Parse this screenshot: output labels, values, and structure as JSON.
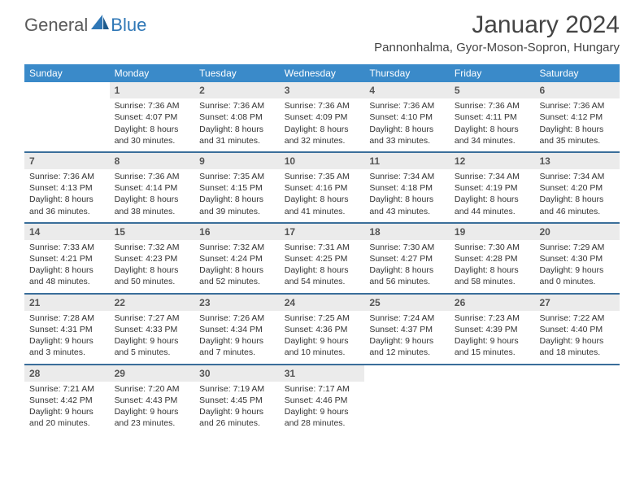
{
  "brand": {
    "part1": "General",
    "part2": "Blue"
  },
  "title": "January 2024",
  "location": "Pannonhalma, Gyor-Moson-Sopron, Hungary",
  "colors": {
    "header_bg": "#3a8ac9",
    "row_border": "#3a6e9a",
    "daynum_bg": "#ebebeb",
    "brand_gray": "#5a5a5a",
    "brand_blue": "#2f77b6"
  },
  "weekdays": [
    "Sunday",
    "Monday",
    "Tuesday",
    "Wednesday",
    "Thursday",
    "Friday",
    "Saturday"
  ],
  "weeks": [
    [
      {
        "n": "",
        "lines": []
      },
      {
        "n": "1",
        "lines": [
          "Sunrise: 7:36 AM",
          "Sunset: 4:07 PM",
          "Daylight: 8 hours",
          "and 30 minutes."
        ]
      },
      {
        "n": "2",
        "lines": [
          "Sunrise: 7:36 AM",
          "Sunset: 4:08 PM",
          "Daylight: 8 hours",
          "and 31 minutes."
        ]
      },
      {
        "n": "3",
        "lines": [
          "Sunrise: 7:36 AM",
          "Sunset: 4:09 PM",
          "Daylight: 8 hours",
          "and 32 minutes."
        ]
      },
      {
        "n": "4",
        "lines": [
          "Sunrise: 7:36 AM",
          "Sunset: 4:10 PM",
          "Daylight: 8 hours",
          "and 33 minutes."
        ]
      },
      {
        "n": "5",
        "lines": [
          "Sunrise: 7:36 AM",
          "Sunset: 4:11 PM",
          "Daylight: 8 hours",
          "and 34 minutes."
        ]
      },
      {
        "n": "6",
        "lines": [
          "Sunrise: 7:36 AM",
          "Sunset: 4:12 PM",
          "Daylight: 8 hours",
          "and 35 minutes."
        ]
      }
    ],
    [
      {
        "n": "7",
        "lines": [
          "Sunrise: 7:36 AM",
          "Sunset: 4:13 PM",
          "Daylight: 8 hours",
          "and 36 minutes."
        ]
      },
      {
        "n": "8",
        "lines": [
          "Sunrise: 7:36 AM",
          "Sunset: 4:14 PM",
          "Daylight: 8 hours",
          "and 38 minutes."
        ]
      },
      {
        "n": "9",
        "lines": [
          "Sunrise: 7:35 AM",
          "Sunset: 4:15 PM",
          "Daylight: 8 hours",
          "and 39 minutes."
        ]
      },
      {
        "n": "10",
        "lines": [
          "Sunrise: 7:35 AM",
          "Sunset: 4:16 PM",
          "Daylight: 8 hours",
          "and 41 minutes."
        ]
      },
      {
        "n": "11",
        "lines": [
          "Sunrise: 7:34 AM",
          "Sunset: 4:18 PM",
          "Daylight: 8 hours",
          "and 43 minutes."
        ]
      },
      {
        "n": "12",
        "lines": [
          "Sunrise: 7:34 AM",
          "Sunset: 4:19 PM",
          "Daylight: 8 hours",
          "and 44 minutes."
        ]
      },
      {
        "n": "13",
        "lines": [
          "Sunrise: 7:34 AM",
          "Sunset: 4:20 PM",
          "Daylight: 8 hours",
          "and 46 minutes."
        ]
      }
    ],
    [
      {
        "n": "14",
        "lines": [
          "Sunrise: 7:33 AM",
          "Sunset: 4:21 PM",
          "Daylight: 8 hours",
          "and 48 minutes."
        ]
      },
      {
        "n": "15",
        "lines": [
          "Sunrise: 7:32 AM",
          "Sunset: 4:23 PM",
          "Daylight: 8 hours",
          "and 50 minutes."
        ]
      },
      {
        "n": "16",
        "lines": [
          "Sunrise: 7:32 AM",
          "Sunset: 4:24 PM",
          "Daylight: 8 hours",
          "and 52 minutes."
        ]
      },
      {
        "n": "17",
        "lines": [
          "Sunrise: 7:31 AM",
          "Sunset: 4:25 PM",
          "Daylight: 8 hours",
          "and 54 minutes."
        ]
      },
      {
        "n": "18",
        "lines": [
          "Sunrise: 7:30 AM",
          "Sunset: 4:27 PM",
          "Daylight: 8 hours",
          "and 56 minutes."
        ]
      },
      {
        "n": "19",
        "lines": [
          "Sunrise: 7:30 AM",
          "Sunset: 4:28 PM",
          "Daylight: 8 hours",
          "and 58 minutes."
        ]
      },
      {
        "n": "20",
        "lines": [
          "Sunrise: 7:29 AM",
          "Sunset: 4:30 PM",
          "Daylight: 9 hours",
          "and 0 minutes."
        ]
      }
    ],
    [
      {
        "n": "21",
        "lines": [
          "Sunrise: 7:28 AM",
          "Sunset: 4:31 PM",
          "Daylight: 9 hours",
          "and 3 minutes."
        ]
      },
      {
        "n": "22",
        "lines": [
          "Sunrise: 7:27 AM",
          "Sunset: 4:33 PM",
          "Daylight: 9 hours",
          "and 5 minutes."
        ]
      },
      {
        "n": "23",
        "lines": [
          "Sunrise: 7:26 AM",
          "Sunset: 4:34 PM",
          "Daylight: 9 hours",
          "and 7 minutes."
        ]
      },
      {
        "n": "24",
        "lines": [
          "Sunrise: 7:25 AM",
          "Sunset: 4:36 PM",
          "Daylight: 9 hours",
          "and 10 minutes."
        ]
      },
      {
        "n": "25",
        "lines": [
          "Sunrise: 7:24 AM",
          "Sunset: 4:37 PM",
          "Daylight: 9 hours",
          "and 12 minutes."
        ]
      },
      {
        "n": "26",
        "lines": [
          "Sunrise: 7:23 AM",
          "Sunset: 4:39 PM",
          "Daylight: 9 hours",
          "and 15 minutes."
        ]
      },
      {
        "n": "27",
        "lines": [
          "Sunrise: 7:22 AM",
          "Sunset: 4:40 PM",
          "Daylight: 9 hours",
          "and 18 minutes."
        ]
      }
    ],
    [
      {
        "n": "28",
        "lines": [
          "Sunrise: 7:21 AM",
          "Sunset: 4:42 PM",
          "Daylight: 9 hours",
          "and 20 minutes."
        ]
      },
      {
        "n": "29",
        "lines": [
          "Sunrise: 7:20 AM",
          "Sunset: 4:43 PM",
          "Daylight: 9 hours",
          "and 23 minutes."
        ]
      },
      {
        "n": "30",
        "lines": [
          "Sunrise: 7:19 AM",
          "Sunset: 4:45 PM",
          "Daylight: 9 hours",
          "and 26 minutes."
        ]
      },
      {
        "n": "31",
        "lines": [
          "Sunrise: 7:17 AM",
          "Sunset: 4:46 PM",
          "Daylight: 9 hours",
          "and 28 minutes."
        ]
      },
      {
        "n": "",
        "lines": []
      },
      {
        "n": "",
        "lines": []
      },
      {
        "n": "",
        "lines": []
      }
    ]
  ]
}
